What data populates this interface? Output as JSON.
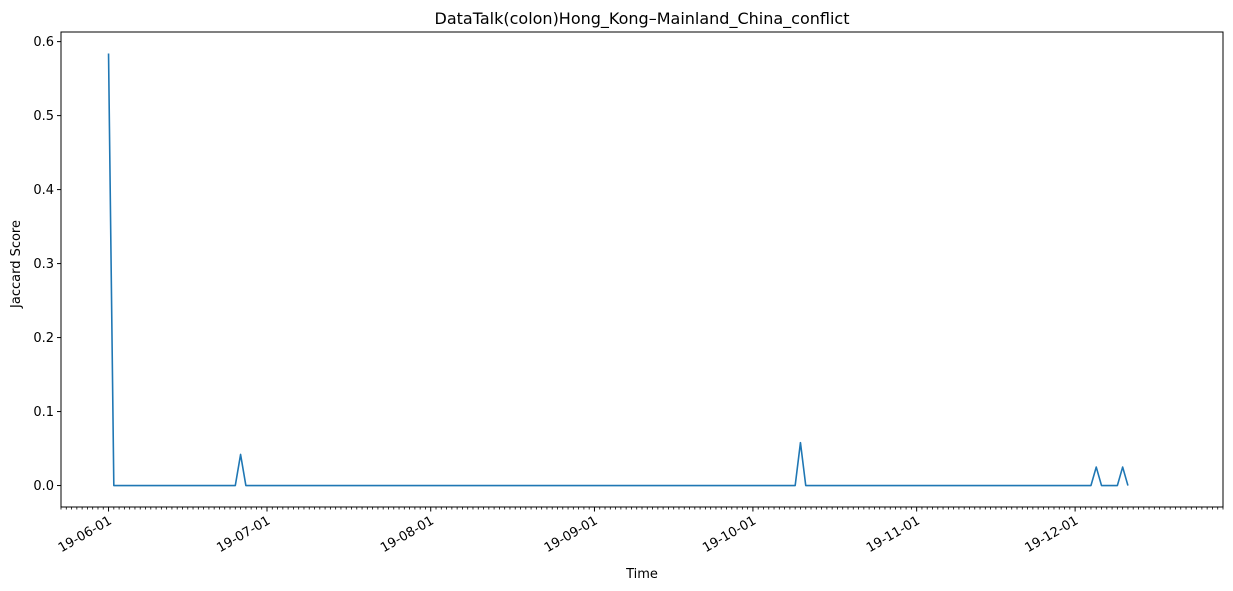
{
  "chart_data": {
    "type": "line",
    "title": "DataTalk(colon)Hong_Kong–Mainland_China_conflict",
    "xlabel": "Time",
    "ylabel": "Jaccard Score",
    "x_axis_kind": "date",
    "xlim": [
      "2019-05-23",
      "2019-12-29"
    ],
    "ylim": [
      -0.029,
      0.613
    ],
    "yticks": [
      0.0,
      0.1,
      0.2,
      0.3,
      0.4,
      0.5,
      0.6
    ],
    "ytick_labels": [
      "0.0",
      "0.1",
      "0.2",
      "0.3",
      "0.4",
      "0.5",
      "0.6"
    ],
    "xticks": [
      "2019-06-01",
      "2019-07-01",
      "2019-08-01",
      "2019-09-01",
      "2019-10-01",
      "2019-11-01",
      "2019-12-01"
    ],
    "xtick_labels": [
      "19-06-01",
      "19-07-01",
      "19-08-01",
      "19-09-01",
      "19-10-01",
      "19-11-01",
      "19-12-01"
    ],
    "grid": false,
    "line_color": "#1f77b4",
    "series": [
      {
        "x": [
          "2019-06-01",
          "2019-06-02",
          "2019-06-25",
          "2019-06-26",
          "2019-06-27",
          "2019-10-09",
          "2019-10-10",
          "2019-10-11",
          "2019-12-04",
          "2019-12-05",
          "2019-12-06",
          "2019-12-09",
          "2019-12-10",
          "2019-12-11"
        ],
        "y": [
          0.584,
          0.0,
          0.0,
          0.042,
          0.0,
          0.0,
          0.058,
          0.0,
          0.0,
          0.025,
          0.0,
          0.0,
          0.025,
          0.0
        ]
      }
    ]
  }
}
